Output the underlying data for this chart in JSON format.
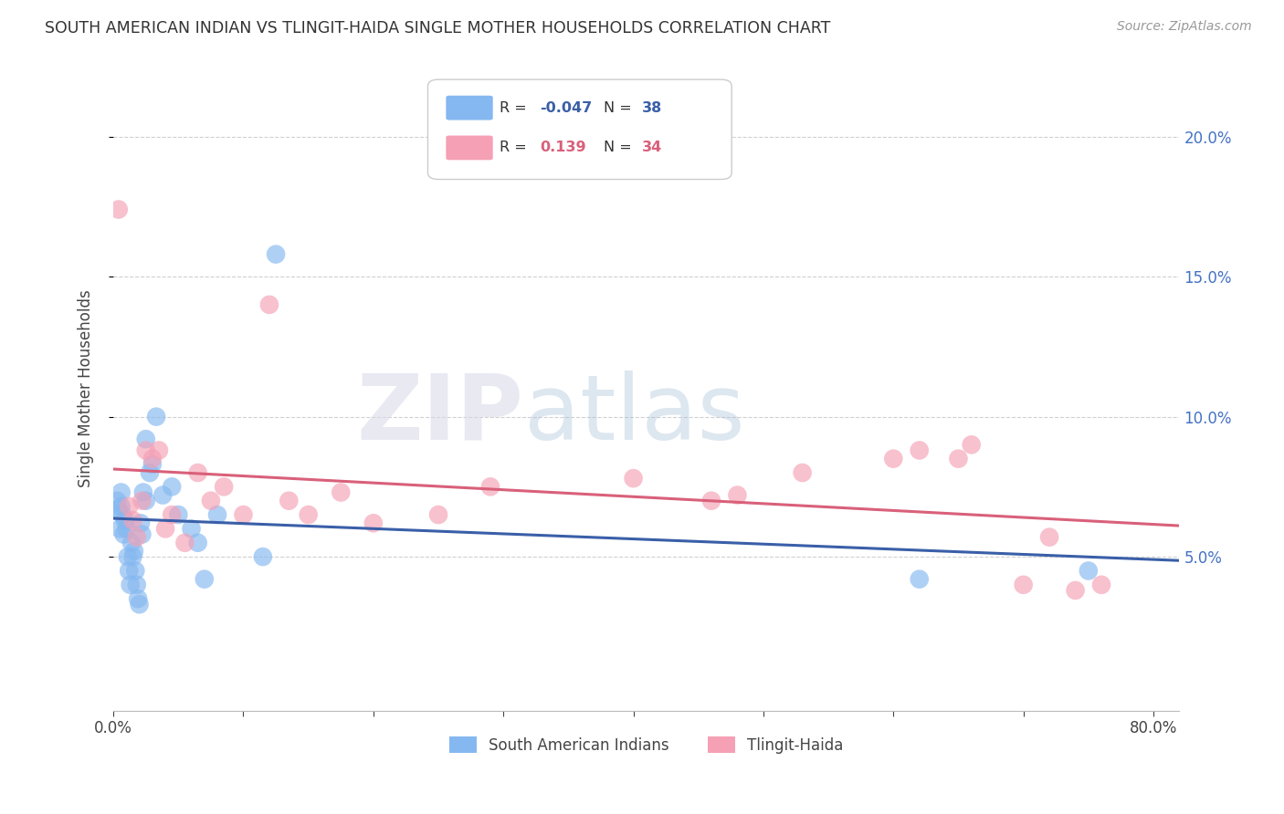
{
  "title": "SOUTH AMERICAN INDIAN VS TLINGIT-HAIDA SINGLE MOTHER HOUSEHOLDS CORRELATION CHART",
  "source": "Source: ZipAtlas.com",
  "ylabel": "Single Mother Households",
  "xlim": [
    0.0,
    0.82
  ],
  "ylim": [
    -0.005,
    0.225
  ],
  "ytick_positions": [
    0.05,
    0.1,
    0.15,
    0.2
  ],
  "ytick_labels": [
    "5.0%",
    "10.0%",
    "15.0%",
    "20.0%"
  ],
  "xtick_positions": [
    0.0,
    0.1,
    0.2,
    0.3,
    0.4,
    0.5,
    0.6,
    0.7,
    0.8
  ],
  "xtick_labels": [
    "0.0%",
    "",
    "",
    "",
    "",
    "",
    "",
    "",
    "80.0%"
  ],
  "series_blue_label": "South American Indians",
  "series_pink_label": "Tlingit-Haida",
  "blue_color": "#85b8f0",
  "pink_color": "#f5a0b5",
  "trendline_blue_color": "#3a5fa8",
  "trendline_blue_dash_color": "#85b8f0",
  "trendline_pink_color": "#d9607a",
  "background_color": "#ffffff",
  "grid_color": "#d0d0d0",
  "blue_x": [
    0.003,
    0.004,
    0.005,
    0.006,
    0.006,
    0.007,
    0.008,
    0.009,
    0.01,
    0.011,
    0.012,
    0.013,
    0.014,
    0.015,
    0.016,
    0.017,
    0.018,
    0.019,
    0.02,
    0.021,
    0.022,
    0.023,
    0.025,
    0.025,
    0.028,
    0.03,
    0.033,
    0.038,
    0.045,
    0.05,
    0.06,
    0.065,
    0.07,
    0.08,
    0.115,
    0.125,
    0.62,
    0.75
  ],
  "blue_y": [
    0.07,
    0.067,
    0.06,
    0.073,
    0.068,
    0.065,
    0.058,
    0.063,
    0.06,
    0.05,
    0.045,
    0.04,
    0.055,
    0.05,
    0.052,
    0.045,
    0.04,
    0.035,
    0.033,
    0.062,
    0.058,
    0.073,
    0.092,
    0.07,
    0.08,
    0.083,
    0.1,
    0.072,
    0.075,
    0.065,
    0.06,
    0.055,
    0.042,
    0.065,
    0.05,
    0.158,
    0.042,
    0.045
  ],
  "pink_x": [
    0.004,
    0.012,
    0.015,
    0.018,
    0.022,
    0.025,
    0.03,
    0.035,
    0.04,
    0.045,
    0.055,
    0.065,
    0.075,
    0.085,
    0.1,
    0.12,
    0.135,
    0.15,
    0.175,
    0.2,
    0.25,
    0.29,
    0.4,
    0.46,
    0.48,
    0.53,
    0.6,
    0.62,
    0.65,
    0.66,
    0.7,
    0.72,
    0.74,
    0.76
  ],
  "pink_y": [
    0.174,
    0.068,
    0.063,
    0.057,
    0.07,
    0.088,
    0.085,
    0.088,
    0.06,
    0.065,
    0.055,
    0.08,
    0.07,
    0.075,
    0.065,
    0.14,
    0.07,
    0.065,
    0.073,
    0.062,
    0.065,
    0.075,
    0.078,
    0.07,
    0.072,
    0.08,
    0.085,
    0.088,
    0.085,
    0.09,
    0.04,
    0.057,
    0.038,
    0.04
  ],
  "blue_line_start_x": 0.0,
  "blue_line_end_x": 0.82,
  "pink_line_start_x": 0.0,
  "pink_line_end_x": 0.82
}
